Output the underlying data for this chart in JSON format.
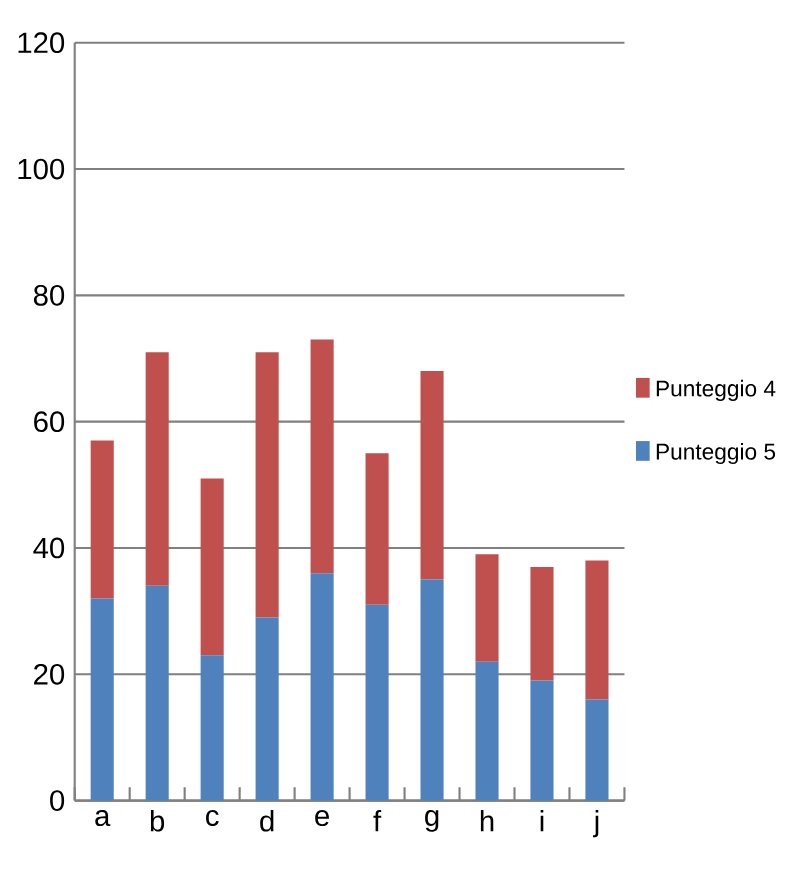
{
  "chart_data": {
    "type": "bar",
    "stacked": true,
    "categories": [
      "a",
      "b",
      "c",
      "d",
      "e",
      "f",
      "g",
      "h",
      "i",
      "j"
    ],
    "series": [
      {
        "name": "Punteggio 5",
        "color": "#4f81bd",
        "values": [
          32,
          34,
          23,
          29,
          36,
          31,
          35,
          22,
          19,
          16
        ]
      },
      {
        "name": "Punteggio 4",
        "color": "#c0504d",
        "values": [
          25,
          37,
          28,
          42,
          37,
          24,
          33,
          17,
          18,
          22
        ]
      }
    ],
    "ylim": [
      0,
      120
    ],
    "yticks": [
      0,
      20,
      40,
      60,
      80,
      100,
      120
    ],
    "grid": "y",
    "legend": "right"
  }
}
